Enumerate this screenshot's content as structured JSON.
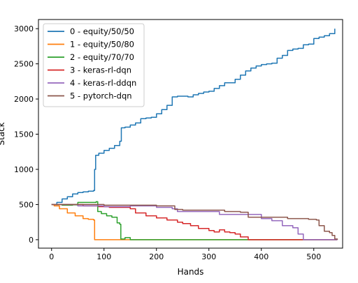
{
  "chart_data": {
    "type": "line",
    "title": "",
    "xlabel": "Hands",
    "ylabel": "Stack",
    "xlim": [
      -25,
      555
    ],
    "ylim": [
      -120,
      3130
    ],
    "xticks": [
      0,
      100,
      200,
      300,
      400,
      500
    ],
    "yticks": [
      0,
      500,
      1000,
      1500,
      2000,
      2500,
      3000
    ],
    "grid": false,
    "legend_position": "top-left",
    "series": [
      {
        "name": "0 - equity/50/50",
        "color": "#1f77b4",
        "points": [
          [
            0,
            500
          ],
          [
            10,
            530
          ],
          [
            20,
            580
          ],
          [
            30,
            610
          ],
          [
            40,
            650
          ],
          [
            50,
            670
          ],
          [
            60,
            680
          ],
          [
            70,
            690
          ],
          [
            80,
            700
          ],
          [
            82,
            1000
          ],
          [
            84,
            1200
          ],
          [
            90,
            1230
          ],
          [
            100,
            1270
          ],
          [
            110,
            1300
          ],
          [
            120,
            1340
          ],
          [
            130,
            1400
          ],
          [
            133,
            1590
          ],
          [
            140,
            1600
          ],
          [
            150,
            1630
          ],
          [
            160,
            1660
          ],
          [
            170,
            1720
          ],
          [
            180,
            1730
          ],
          [
            190,
            1740
          ],
          [
            200,
            1790
          ],
          [
            210,
            1850
          ],
          [
            220,
            1910
          ],
          [
            230,
            2030
          ],
          [
            240,
            2040
          ],
          [
            250,
            2040
          ],
          [
            260,
            2030
          ],
          [
            270,
            2060
          ],
          [
            280,
            2080
          ],
          [
            290,
            2100
          ],
          [
            300,
            2110
          ],
          [
            310,
            2150
          ],
          [
            320,
            2190
          ],
          [
            330,
            2230
          ],
          [
            340,
            2230
          ],
          [
            350,
            2280
          ],
          [
            360,
            2340
          ],
          [
            370,
            2400
          ],
          [
            380,
            2440
          ],
          [
            390,
            2470
          ],
          [
            400,
            2490
          ],
          [
            410,
            2500
          ],
          [
            420,
            2510
          ],
          [
            430,
            2580
          ],
          [
            440,
            2620
          ],
          [
            450,
            2690
          ],
          [
            460,
            2710
          ],
          [
            470,
            2720
          ],
          [
            480,
            2770
          ],
          [
            490,
            2780
          ],
          [
            500,
            2860
          ],
          [
            510,
            2880
          ],
          [
            520,
            2900
          ],
          [
            530,
            2930
          ],
          [
            540,
            3000
          ]
        ]
      },
      {
        "name": "1 - equity/50/80",
        "color": "#ff7f0e",
        "points": [
          [
            0,
            500
          ],
          [
            5,
            480
          ],
          [
            15,
            440
          ],
          [
            30,
            380
          ],
          [
            45,
            340
          ],
          [
            60,
            300
          ],
          [
            70,
            290
          ],
          [
            80,
            280
          ],
          [
            82,
            0
          ],
          [
            545,
            0
          ]
        ]
      },
      {
        "name": "2 - equity/70/70",
        "color": "#2ca02c",
        "points": [
          [
            0,
            500
          ],
          [
            20,
            490
          ],
          [
            40,
            495
          ],
          [
            50,
            530
          ],
          [
            70,
            530
          ],
          [
            85,
            540
          ],
          [
            88,
            400
          ],
          [
            95,
            370
          ],
          [
            105,
            340
          ],
          [
            115,
            320
          ],
          [
            125,
            240
          ],
          [
            130,
            220
          ],
          [
            132,
            10
          ],
          [
            140,
            30
          ],
          [
            150,
            0
          ],
          [
            545,
            0
          ]
        ]
      },
      {
        "name": "3 - keras-rl-dqn",
        "color": "#d62728",
        "points": [
          [
            0,
            500
          ],
          [
            30,
            500
          ],
          [
            60,
            480
          ],
          [
            90,
            470
          ],
          [
            110,
            460
          ],
          [
            130,
            460
          ],
          [
            150,
            440
          ],
          [
            160,
            380
          ],
          [
            180,
            340
          ],
          [
            200,
            310
          ],
          [
            220,
            280
          ],
          [
            240,
            250
          ],
          [
            250,
            230
          ],
          [
            265,
            200
          ],
          [
            280,
            160
          ],
          [
            300,
            130
          ],
          [
            310,
            110
          ],
          [
            320,
            140
          ],
          [
            330,
            110
          ],
          [
            340,
            100
          ],
          [
            350,
            80
          ],
          [
            360,
            40
          ],
          [
            375,
            0
          ],
          [
            545,
            0
          ]
        ]
      },
      {
        "name": "4 - keras-rl-ddqn",
        "color": "#9467bd",
        "points": [
          [
            0,
            500
          ],
          [
            50,
            480
          ],
          [
            100,
            470
          ],
          [
            150,
            480
          ],
          [
            200,
            460
          ],
          [
            230,
            440
          ],
          [
            240,
            400
          ],
          [
            300,
            400
          ],
          [
            320,
            360
          ],
          [
            390,
            360
          ],
          [
            400,
            300
          ],
          [
            420,
            270
          ],
          [
            440,
            200
          ],
          [
            460,
            170
          ],
          [
            470,
            80
          ],
          [
            480,
            0
          ],
          [
            545,
            0
          ]
        ]
      },
      {
        "name": "5 - pytorch-dqn",
        "color": "#8c564b",
        "points": [
          [
            0,
            500
          ],
          [
            50,
            500
          ],
          [
            100,
            490
          ],
          [
            150,
            490
          ],
          [
            200,
            480
          ],
          [
            230,
            480
          ],
          [
            235,
            430
          ],
          [
            250,
            420
          ],
          [
            300,
            420
          ],
          [
            330,
            400
          ],
          [
            360,
            390
          ],
          [
            375,
            320
          ],
          [
            400,
            320
          ],
          [
            430,
            320
          ],
          [
            450,
            300
          ],
          [
            470,
            300
          ],
          [
            490,
            290
          ],
          [
            505,
            280
          ],
          [
            510,
            200
          ],
          [
            520,
            120
          ],
          [
            530,
            100
          ],
          [
            535,
            60
          ],
          [
            540,
            10
          ],
          [
            545,
            0
          ]
        ]
      }
    ]
  }
}
